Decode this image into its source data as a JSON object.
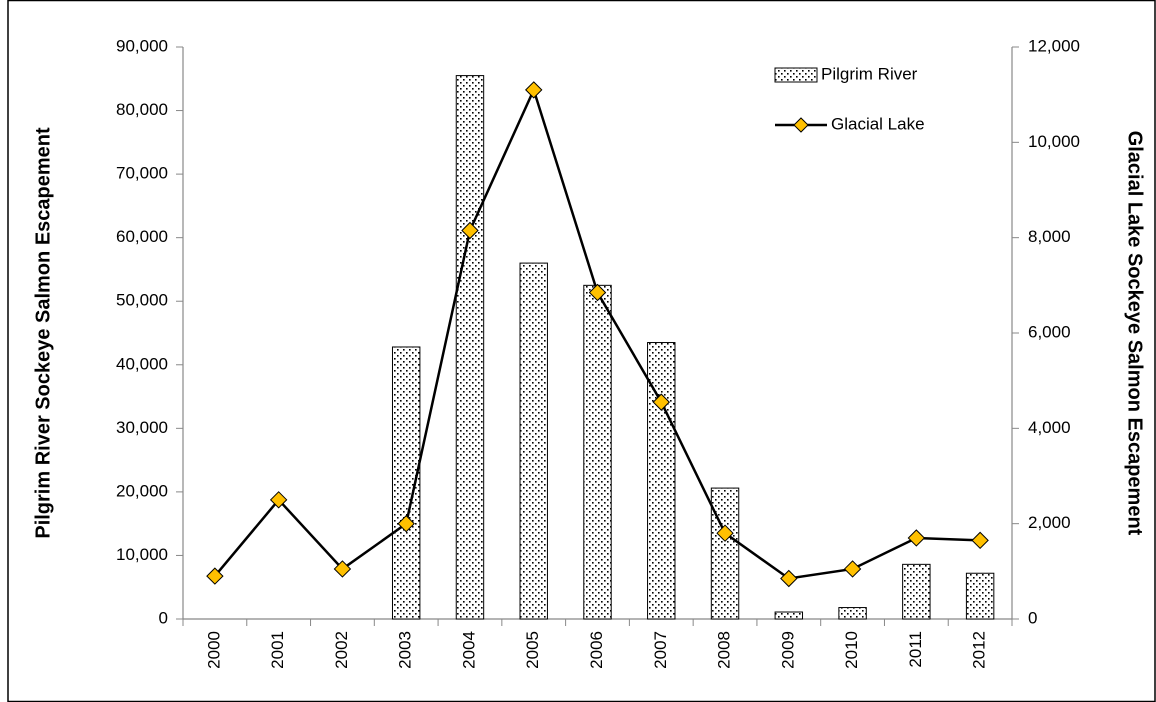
{
  "chart_data": {
    "type": "bar-line",
    "categories": [
      "2000",
      "2001",
      "2002",
      "2003",
      "2004",
      "2005",
      "2006",
      "2007",
      "2008",
      "2009",
      "2010",
      "2011",
      "2012"
    ],
    "y_label": "Pilgrim River Sockeye Salmon Escapement",
    "y2_label": "Glacial Lake Sockeye Salmon Escapement",
    "ylim": [
      0,
      90000
    ],
    "yticks": [
      0,
      {
        "value": 10000,
        "label": "10,000"
      },
      {
        "value": 20000,
        "label": "20,000"
      },
      {
        "value": 30000,
        "label": "30,000"
      },
      {
        "value": 40000,
        "label": "40,000"
      },
      {
        "value": 50000,
        "label": "50,000"
      },
      {
        "value": 60000,
        "label": "60,000"
      },
      {
        "value": 70000,
        "label": "70,000"
      },
      {
        "value": 80000,
        "label": "80,000"
      },
      {
        "value": 90000,
        "label": "90,000"
      }
    ],
    "y2lim": [
      0,
      12000
    ],
    "y2ticks": [
      0,
      {
        "value": 2000,
        "label": "2,000"
      },
      {
        "value": 4000,
        "label": "4,000"
      },
      {
        "value": 6000,
        "label": "6,000"
      },
      {
        "value": 8000,
        "label": "8,000"
      },
      {
        "value": 10000,
        "label": "10,000"
      },
      {
        "value": 12000,
        "label": "12,000"
      }
    ],
    "legend": "top-right",
    "series": [
      {
        "name": "Pilgrim River",
        "type": "bar",
        "color": "#000000",
        "values": [
          null,
          null,
          null,
          42800,
          85500,
          56000,
          52500,
          43500,
          20600,
          1100,
          1800,
          8600,
          7200
        ]
      },
      {
        "name": "Glacial Lake",
        "type": "line",
        "axis": "y2",
        "color": "#000000",
        "marker_color": "#FFC000",
        "values": [
          900,
          2500,
          1050,
          2000,
          8150,
          11100,
          6850,
          4550,
          1800,
          850,
          1050,
          1700,
          1650
        ]
      }
    ]
  }
}
